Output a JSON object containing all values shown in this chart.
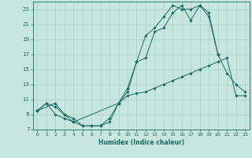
{
  "xlabel": "Humidex (Indice chaleur)",
  "bg_color": "#c8e6e0",
  "grid_color": "#a8cec8",
  "line_color": "#1a6b60",
  "xlim": [
    -0.5,
    23.5
  ],
  "ylim": [
    7,
    24
  ],
  "yticks": [
    7,
    9,
    11,
    13,
    15,
    17,
    19,
    21,
    23
  ],
  "xticks": [
    0,
    1,
    2,
    3,
    4,
    5,
    6,
    7,
    8,
    9,
    10,
    11,
    12,
    13,
    14,
    15,
    16,
    17,
    18,
    19,
    20,
    21,
    22,
    23
  ],
  "line1_x": [
    0,
    1,
    2,
    3,
    4,
    5,
    6,
    7,
    8,
    9,
    10,
    11,
    12,
    13,
    14,
    15,
    16,
    17,
    18,
    19,
    20,
    21,
    22,
    23
  ],
  "line1_y": [
    9.5,
    10.5,
    10.0,
    9.0,
    8.5,
    7.5,
    7.5,
    7.5,
    8.0,
    10.5,
    11.5,
    11.8,
    12.0,
    12.5,
    13.0,
    13.5,
    14.0,
    14.5,
    15.0,
    15.5,
    16.0,
    16.5,
    11.5,
    11.5
  ],
  "line2_x": [
    0,
    1,
    2,
    3,
    4,
    5,
    6,
    7,
    8,
    9,
    10,
    11,
    12,
    13,
    14,
    15,
    16,
    17,
    18,
    19,
    20,
    21,
    22,
    23
  ],
  "line2_y": [
    9.5,
    10.5,
    9.0,
    8.5,
    8.0,
    7.5,
    7.5,
    7.5,
    8.5,
    10.5,
    12.0,
    16.0,
    19.5,
    20.5,
    22.0,
    23.5,
    23.0,
    23.0,
    23.5,
    22.0,
    17.0,
    14.5,
    13.0,
    12.0
  ],
  "line3_x": [
    0,
    2,
    3,
    4,
    9,
    10,
    11,
    12,
    13,
    14,
    15,
    16,
    17,
    18,
    19,
    20
  ],
  "line3_y": [
    9.5,
    10.5,
    9.0,
    8.0,
    10.5,
    12.5,
    16.0,
    16.5,
    20.0,
    20.5,
    22.5,
    23.5,
    21.5,
    23.5,
    22.5,
    17.0
  ]
}
